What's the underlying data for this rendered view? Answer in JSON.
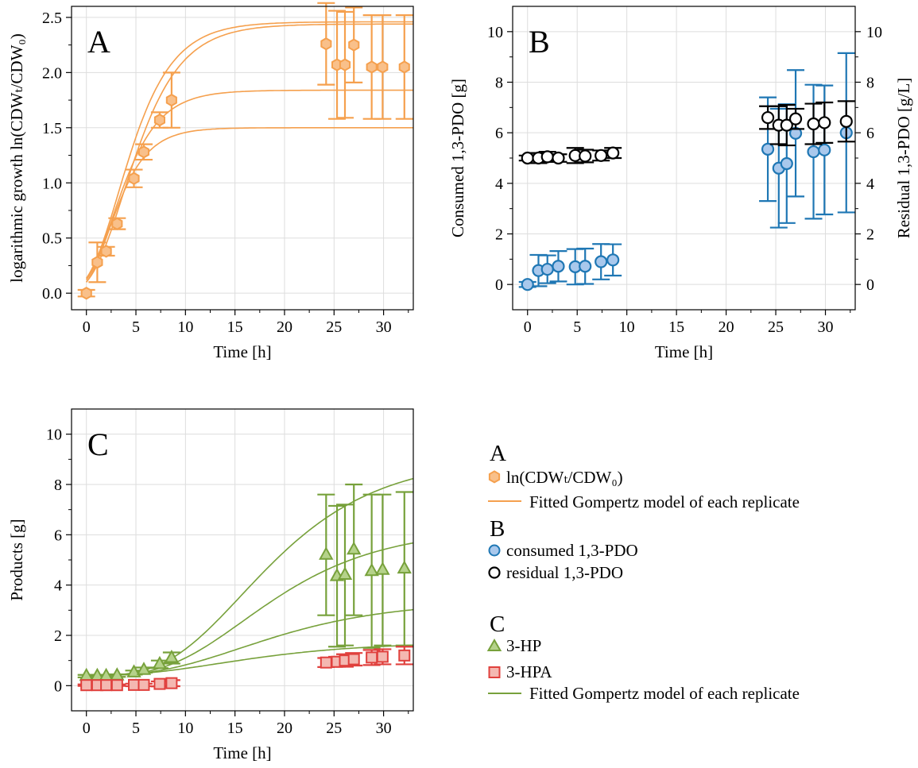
{
  "colors": {
    "orange": "#f5a04e",
    "orange_fill": "#f9c08a",
    "blue": "#1f77b4",
    "blue_fill": "#a9c8ec",
    "black": "#000000",
    "green": "#77a13b",
    "green_fill": "#b5d28a",
    "red": "#e0403d",
    "red_fill": "#f4b8b1",
    "grid": "#dddddd"
  },
  "chart_data": [
    {
      "id": "A",
      "type": "scatter",
      "panel_label": "A",
      "xlabel": "Time [h]",
      "ylabel": "logarithmic growth  ln(CDWₜ/CDW₀)",
      "xlim": [
        -1.5,
        33
      ],
      "ylim": [
        -0.15,
        2.6
      ],
      "xticks": [
        0,
        5,
        10,
        15,
        20,
        25,
        30
      ],
      "xtick_labels": [
        "0",
        "5",
        "10",
        "15",
        "20",
        "25",
        "30"
      ],
      "yticks": [
        0,
        0.5,
        1.0,
        1.5,
        2.0,
        2.5
      ],
      "ytick_labels": [
        "0.0",
        "0.5",
        "1.0",
        "1.5",
        "2.0",
        "2.5"
      ],
      "grid": true,
      "series": [
        {
          "name": "ln(CDWₜ/CDW₀)",
          "marker": "hexagon",
          "color": "orange",
          "x": [
            0,
            1.1,
            2.0,
            3.1,
            4.8,
            5.8,
            7.4,
            8.6,
            24.2,
            25.3,
            26.1,
            27.0,
            28.8,
            29.9,
            32.1
          ],
          "y": [
            0.0,
            0.28,
            0.38,
            0.63,
            1.04,
            1.28,
            1.57,
            1.75,
            2.26,
            2.07,
            2.07,
            2.25,
            2.05,
            2.05,
            2.05
          ],
          "err": [
            0.03,
            0.18,
            0.04,
            0.05,
            0.08,
            0.07,
            0.07,
            0.25,
            0.37,
            0.49,
            0.48,
            0.34,
            0.47,
            0.47,
            0.47
          ]
        }
      ],
      "fits": [
        {
          "model": "gompertz",
          "A": 2.46,
          "mu": 0.3,
          "lambda": 0.2
        },
        {
          "model": "gompertz",
          "A": 2.44,
          "mu": 0.28,
          "lambda": 0.5
        },
        {
          "model": "gompertz",
          "A": 1.84,
          "mu": 0.26,
          "lambda": 0.0
        },
        {
          "model": "gompertz",
          "A": 1.5,
          "mu": 0.25,
          "lambda": 0.0
        }
      ]
    },
    {
      "id": "B",
      "type": "scatter",
      "panel_label": "B",
      "xlabel": "Time [h]",
      "ylabel": "Consumed 1,3-PDO [g]",
      "ylabel_right": "Residual 1,3-PDO [g/L]",
      "xlim": [
        -1.5,
        33
      ],
      "ylim": [
        -1.0,
        11.0
      ],
      "xticks": [
        0,
        5,
        10,
        15,
        20,
        25,
        30
      ],
      "xtick_labels": [
        "0",
        "5",
        "10",
        "15",
        "20",
        "25",
        "30"
      ],
      "yticks": [
        0,
        2,
        4,
        6,
        8,
        10
      ],
      "ytick_labels": [
        "0",
        "2",
        "4",
        "6",
        "8",
        "10"
      ],
      "grid": true,
      "series": [
        {
          "name": "consumed 1,3-PDO",
          "marker": "circle",
          "color": "blue",
          "x": [
            0,
            1.1,
            2.0,
            3.1,
            4.8,
            5.8,
            7.4,
            8.6,
            24.2,
            25.3,
            26.1,
            27.0,
            28.8,
            29.9,
            32.1
          ],
          "y": [
            0.0,
            0.55,
            0.6,
            0.72,
            0.7,
            0.72,
            0.9,
            0.97,
            5.35,
            4.6,
            4.78,
            5.98,
            5.25,
            5.32,
            6.0
          ],
          "err": [
            0.1,
            0.62,
            0.55,
            0.6,
            0.7,
            0.7,
            0.7,
            0.62,
            2.05,
            2.35,
            2.35,
            2.5,
            2.65,
            2.55,
            3.15
          ]
        },
        {
          "name": "residual 1,3-PDO",
          "marker": "circle",
          "color": "black",
          "x": [
            0,
            1.1,
            2.0,
            3.1,
            4.8,
            5.8,
            7.4,
            8.6,
            24.2,
            25.3,
            26.1,
            27.0,
            28.8,
            29.9,
            32.1
          ],
          "y": [
            5.0,
            5.0,
            5.05,
            5.0,
            5.1,
            5.08,
            5.1,
            5.2,
            6.6,
            6.3,
            6.3,
            6.55,
            6.35,
            6.4,
            6.45
          ],
          "err": [
            0.1,
            0.2,
            0.2,
            0.15,
            0.3,
            0.25,
            0.2,
            0.2,
            0.45,
            0.75,
            0.8,
            0.4,
            0.8,
            0.8,
            0.8
          ]
        }
      ]
    },
    {
      "id": "C",
      "type": "scatter",
      "panel_label": "C",
      "xlabel": "Time [h]",
      "ylabel": "Products [g]",
      "xlim": [
        -1.5,
        33
      ],
      "ylim": [
        -1.0,
        11.0
      ],
      "xticks": [
        0,
        5,
        10,
        15,
        20,
        25,
        30
      ],
      "xtick_labels": [
        "0",
        "5",
        "10",
        "15",
        "20",
        "25",
        "30"
      ],
      "yticks": [
        0,
        2,
        4,
        6,
        8,
        10
      ],
      "ytick_labels": [
        "0",
        "2",
        "4",
        "6",
        "8",
        "10"
      ],
      "grid": true,
      "series": [
        {
          "name": "3-HP",
          "marker": "triangle",
          "color": "green",
          "x": [
            0,
            1.1,
            2.0,
            3.1,
            4.8,
            5.8,
            7.4,
            8.6,
            24.2,
            25.3,
            26.1,
            27.0,
            28.8,
            29.9,
            32.1
          ],
          "y": [
            0.38,
            0.38,
            0.38,
            0.4,
            0.52,
            0.62,
            0.85,
            1.1,
            5.2,
            4.35,
            4.4,
            5.4,
            4.55,
            4.6,
            4.65
          ],
          "err": [
            0.05,
            0.05,
            0.05,
            0.05,
            0.08,
            0.1,
            0.15,
            0.22,
            2.4,
            2.8,
            2.8,
            2.6,
            3.05,
            3.0,
            3.05
          ]
        },
        {
          "name": "3-HPA",
          "marker": "square",
          "color": "red",
          "x": [
            0,
            1.1,
            2.0,
            3.1,
            4.8,
            5.8,
            7.4,
            8.6,
            24.2,
            25.3,
            26.1,
            27.0,
            28.8,
            29.9,
            32.1
          ],
          "y": [
            0.02,
            0.02,
            0.02,
            0.02,
            0.03,
            0.03,
            0.07,
            0.1,
            0.92,
            0.95,
            1.0,
            1.05,
            1.12,
            1.15,
            1.2
          ],
          "err": [
            0.03,
            0.03,
            0.03,
            0.03,
            0.05,
            0.05,
            0.1,
            0.12,
            0.18,
            0.2,
            0.25,
            0.25,
            0.3,
            0.3,
            0.35
          ]
        }
      ],
      "fits": [
        {
          "model": "gompertz",
          "base": 0.38,
          "A": 8.7,
          "mu": 0.42,
          "lambda": 8.0
        },
        {
          "model": "gompertz",
          "base": 0.38,
          "A": 5.9,
          "mu": 0.28,
          "lambda": 8.0
        },
        {
          "model": "gompertz",
          "base": 0.38,
          "A": 3.0,
          "mu": 0.13,
          "lambda": 7.0
        },
        {
          "model": "gompertz",
          "base": 0.38,
          "A": 1.35,
          "mu": 0.06,
          "lambda": 5.0
        }
      ]
    }
  ],
  "legend": {
    "a_header": "A",
    "a_marker_label": "ln(CDWₜ/CDW₀)",
    "a_line_label": "Fitted Gompertz model of each replicate",
    "b_header": "B",
    "b_consumed_label": "consumed 1,3-PDO",
    "b_residual_label": "residual 1,3-PDO",
    "c_header": "C",
    "c_hp_label": "3-HP",
    "c_hpa_label": "3-HPA",
    "c_line_label": "Fitted Gompertz model of each replicate"
  }
}
